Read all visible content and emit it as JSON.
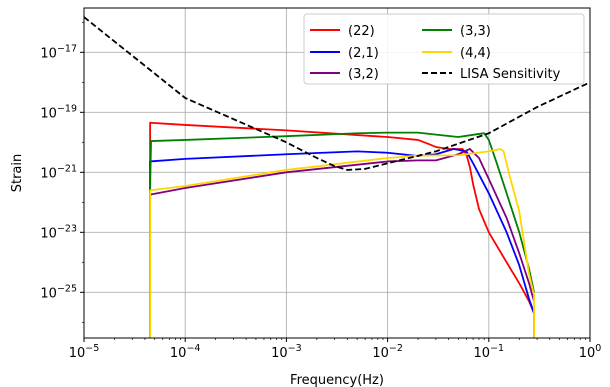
{
  "chart_data": {
    "type": "line",
    "xlabel": "Frequency(Hz)",
    "ylabel": "Strain",
    "xscale": "log",
    "yscale": "log",
    "xlim": [
      1e-05,
      1
    ],
    "ylim": [
      3e-27,
      3e-16
    ],
    "grid": true,
    "legend_position": "top-right",
    "legend_columns": 2,
    "x_ticks": [
      {
        "value": 1e-05,
        "base": "10",
        "exp": "−5"
      },
      {
        "value": 0.0001,
        "base": "10",
        "exp": "−4"
      },
      {
        "value": 0.001,
        "base": "10",
        "exp": "−3"
      },
      {
        "value": 0.01,
        "base": "10",
        "exp": "−2"
      },
      {
        "value": 0.1,
        "base": "10",
        "exp": "−1"
      },
      {
        "value": 1,
        "base": "10",
        "exp": "0"
      }
    ],
    "y_ticks": [
      {
        "value": 1e-25,
        "base": "10",
        "exp": "−25"
      },
      {
        "value": 1e-23,
        "base": "10",
        "exp": "−23"
      },
      {
        "value": 1e-21,
        "base": "10",
        "exp": "−21"
      },
      {
        "value": 1e-19,
        "base": "10",
        "exp": "−19"
      },
      {
        "value": 1e-17,
        "base": "10",
        "exp": "−17"
      }
    ],
    "series": [
      {
        "name": "(22)",
        "color": "#ff0000",
        "dash": false,
        "x": [
          4.5e-05,
          4.5e-05,
          0.0001,
          0.001,
          0.01,
          0.02,
          0.025,
          0.03,
          0.04,
          0.055,
          0.06,
          0.065,
          0.07,
          0.08,
          0.1,
          0.15,
          0.2,
          0.25,
          0.28,
          0.28
        ],
        "y": [
          3e-27,
          4.5e-20,
          3.8e-20,
          2.5e-20,
          1.5e-20,
          1.2e-20,
          9e-21,
          7e-21,
          6e-21,
          6e-21,
          4e-21,
          1.5e-21,
          4e-22,
          6e-23,
          1e-23,
          1e-24,
          2e-25,
          5e-26,
          2e-26,
          3e-27
        ]
      },
      {
        "name": "(2,1)",
        "color": "#0000ff",
        "dash": false,
        "x": [
          4.5e-05,
          4.5e-05,
          0.0001,
          0.001,
          0.005,
          0.01,
          0.02,
          0.03,
          0.045,
          0.06,
          0.07,
          0.1,
          0.15,
          0.2,
          0.25,
          0.28
        ],
        "y": [
          3e-27,
          2.3e-21,
          2.8e-21,
          4e-21,
          5e-21,
          4.5e-21,
          3.5e-21,
          4e-21,
          6e-21,
          5e-21,
          2e-21,
          2e-22,
          1e-23,
          8e-25,
          6e-26,
          2e-26
        ]
      },
      {
        "name": "(3,2)",
        "color": "#800080",
        "dash": false,
        "x": [
          4.5e-05,
          4.5e-05,
          0.0001,
          0.001,
          0.01,
          0.02,
          0.03,
          0.05,
          0.065,
          0.08,
          0.1,
          0.15,
          0.2,
          0.25,
          0.28
        ],
        "y": [
          3e-27,
          1.8e-22,
          3e-22,
          1e-21,
          2.3e-21,
          2.5e-21,
          2.5e-21,
          4e-21,
          6e-21,
          3e-21,
          6e-22,
          3e-23,
          2e-24,
          2e-25,
          5e-26
        ]
      },
      {
        "name": "(3,3)",
        "color": "#008000",
        "dash": false,
        "x": [
          4.5e-05,
          4.5e-05,
          4.6e-05,
          0.0001,
          0.001,
          0.005,
          0.01,
          0.02,
          0.03,
          0.05,
          0.08,
          0.09,
          0.1,
          0.12,
          0.15,
          0.2,
          0.25,
          0.28
        ],
        "y": [
          3e-27,
          3e-22,
          1.1e-20,
          1.2e-20,
          1.6e-20,
          2e-20,
          2.1e-20,
          2.1e-20,
          1.8e-20,
          1.5e-20,
          1.9e-20,
          2e-20,
          1.2e-20,
          2e-21,
          2e-22,
          1e-23,
          6e-25,
          1e-25
        ]
      },
      {
        "name": "(4,4)",
        "color": "#ffd700",
        "dash": false,
        "x": [
          4.5e-05,
          4.5e-05,
          0.0001,
          0.001,
          0.01,
          0.02,
          0.05,
          0.1,
          0.13,
          0.14,
          0.16,
          0.2,
          0.25,
          0.28,
          0.28
        ],
        "y": [
          3e-27,
          2.5e-22,
          3.5e-22,
          1.2e-21,
          3e-21,
          3.6e-21,
          3.7e-21,
          5e-21,
          6e-21,
          5e-21,
          8e-22,
          5e-23,
          4e-25,
          8e-26,
          3e-27
        ]
      },
      {
        "name": "LISA Sensitivity",
        "color": "#000000",
        "dash": true,
        "x": [
          1e-05,
          0.0001,
          0.001,
          0.002,
          0.003,
          0.004,
          0.006,
          0.01,
          0.03,
          0.1,
          0.3,
          1
        ],
        "y": [
          1.5e-16,
          3e-19,
          1e-20,
          3e-21,
          1.6e-21,
          1.2e-21,
          1.3e-21,
          2e-21,
          5e-21,
          2e-20,
          1.5e-19,
          1e-18
        ]
      }
    ]
  }
}
